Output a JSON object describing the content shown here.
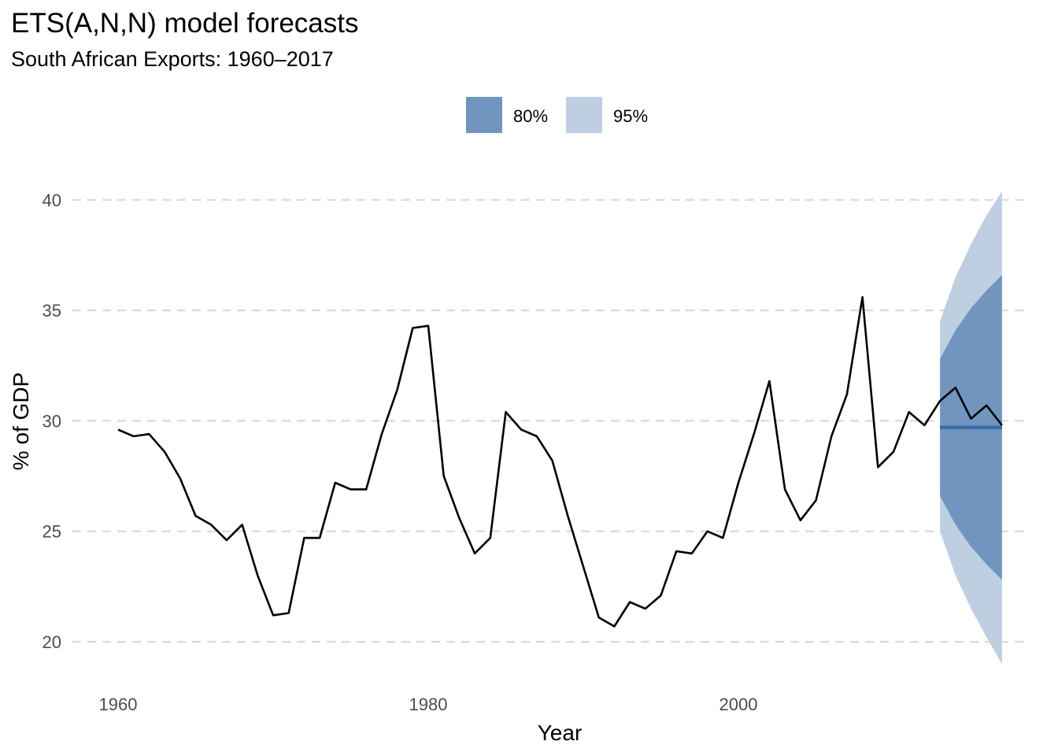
{
  "chart_data": {
    "type": "line",
    "title": "ETS(A,N,N) model forecasts",
    "subtitle": "South African Exports: 1960–2017",
    "xlabel": "Year",
    "ylabel": "% of GDP",
    "xlim": [
      1960,
      2022
    ],
    "ylim": [
      20,
      40
    ],
    "xticks": [
      1960,
      1980,
      2000
    ],
    "yticks": [
      20,
      25,
      30,
      35,
      40
    ],
    "grid": "horizontal-dashed",
    "legend_position": "top",
    "legend": [
      {
        "label": "80%",
        "color": "#7295bf"
      },
      {
        "label": "95%",
        "color": "#bfcfe2"
      }
    ],
    "colors": {
      "line": "#000000",
      "forecast": "#3a6ea5",
      "interval_80": "#7295bf",
      "interval_95": "#bfcfe2",
      "grid": "#d9d9d9"
    },
    "series": [
      {
        "x": [
          1960,
          1961,
          1962,
          1963,
          1964,
          1965,
          1966,
          1967,
          1968,
          1969,
          1970,
          1971,
          1972,
          1973,
          1974,
          1975,
          1976,
          1977,
          1978,
          1979,
          1980,
          1981,
          1982,
          1983,
          1984,
          1985,
          1986,
          1987,
          1988,
          1989,
          1990,
          1991,
          1992,
          1993,
          1994,
          1995,
          1996,
          1997,
          1998,
          1999,
          2000,
          2001,
          2002,
          2003,
          2004,
          2005,
          2006,
          2007,
          2008,
          2009,
          2010,
          2011,
          2012,
          2013,
          2014,
          2015,
          2016,
          2017
        ],
        "values": [
          29.6,
          29.3,
          29.4,
          28.6,
          27.4,
          25.7,
          25.3,
          24.6,
          25.3,
          23.0,
          21.2,
          21.3,
          24.7,
          24.7,
          27.2,
          26.9,
          26.9,
          29.4,
          31.4,
          34.2,
          34.3,
          27.5,
          25.6,
          24.0,
          24.7,
          30.4,
          29.6,
          29.3,
          28.2,
          25.7,
          23.4,
          21.1,
          20.7,
          21.8,
          21.5,
          22.1,
          24.1,
          24.0,
          25.0,
          24.7,
          27.2,
          29.4,
          31.8,
          26.9,
          25.5,
          26.4,
          29.3,
          31.2,
          35.6,
          27.9,
          28.6,
          30.4,
          29.8,
          30.9,
          31.5,
          30.1,
          30.7,
          29.8
        ]
      }
    ],
    "forecast": {
      "x": [
        2013,
        2014,
        2015,
        2016,
        2017
      ],
      "mean": [
        29.7,
        29.7,
        29.7,
        29.7,
        29.7
      ],
      "lower_80": [
        26.6,
        25.3,
        24.3,
        23.5,
        22.8
      ],
      "upper_80": [
        32.8,
        34.1,
        35.1,
        35.9,
        36.6
      ],
      "lower_95": [
        25.0,
        23.0,
        21.5,
        20.2,
        19.0
      ],
      "upper_95": [
        34.5,
        36.5,
        38.0,
        39.3,
        40.4
      ]
    }
  }
}
